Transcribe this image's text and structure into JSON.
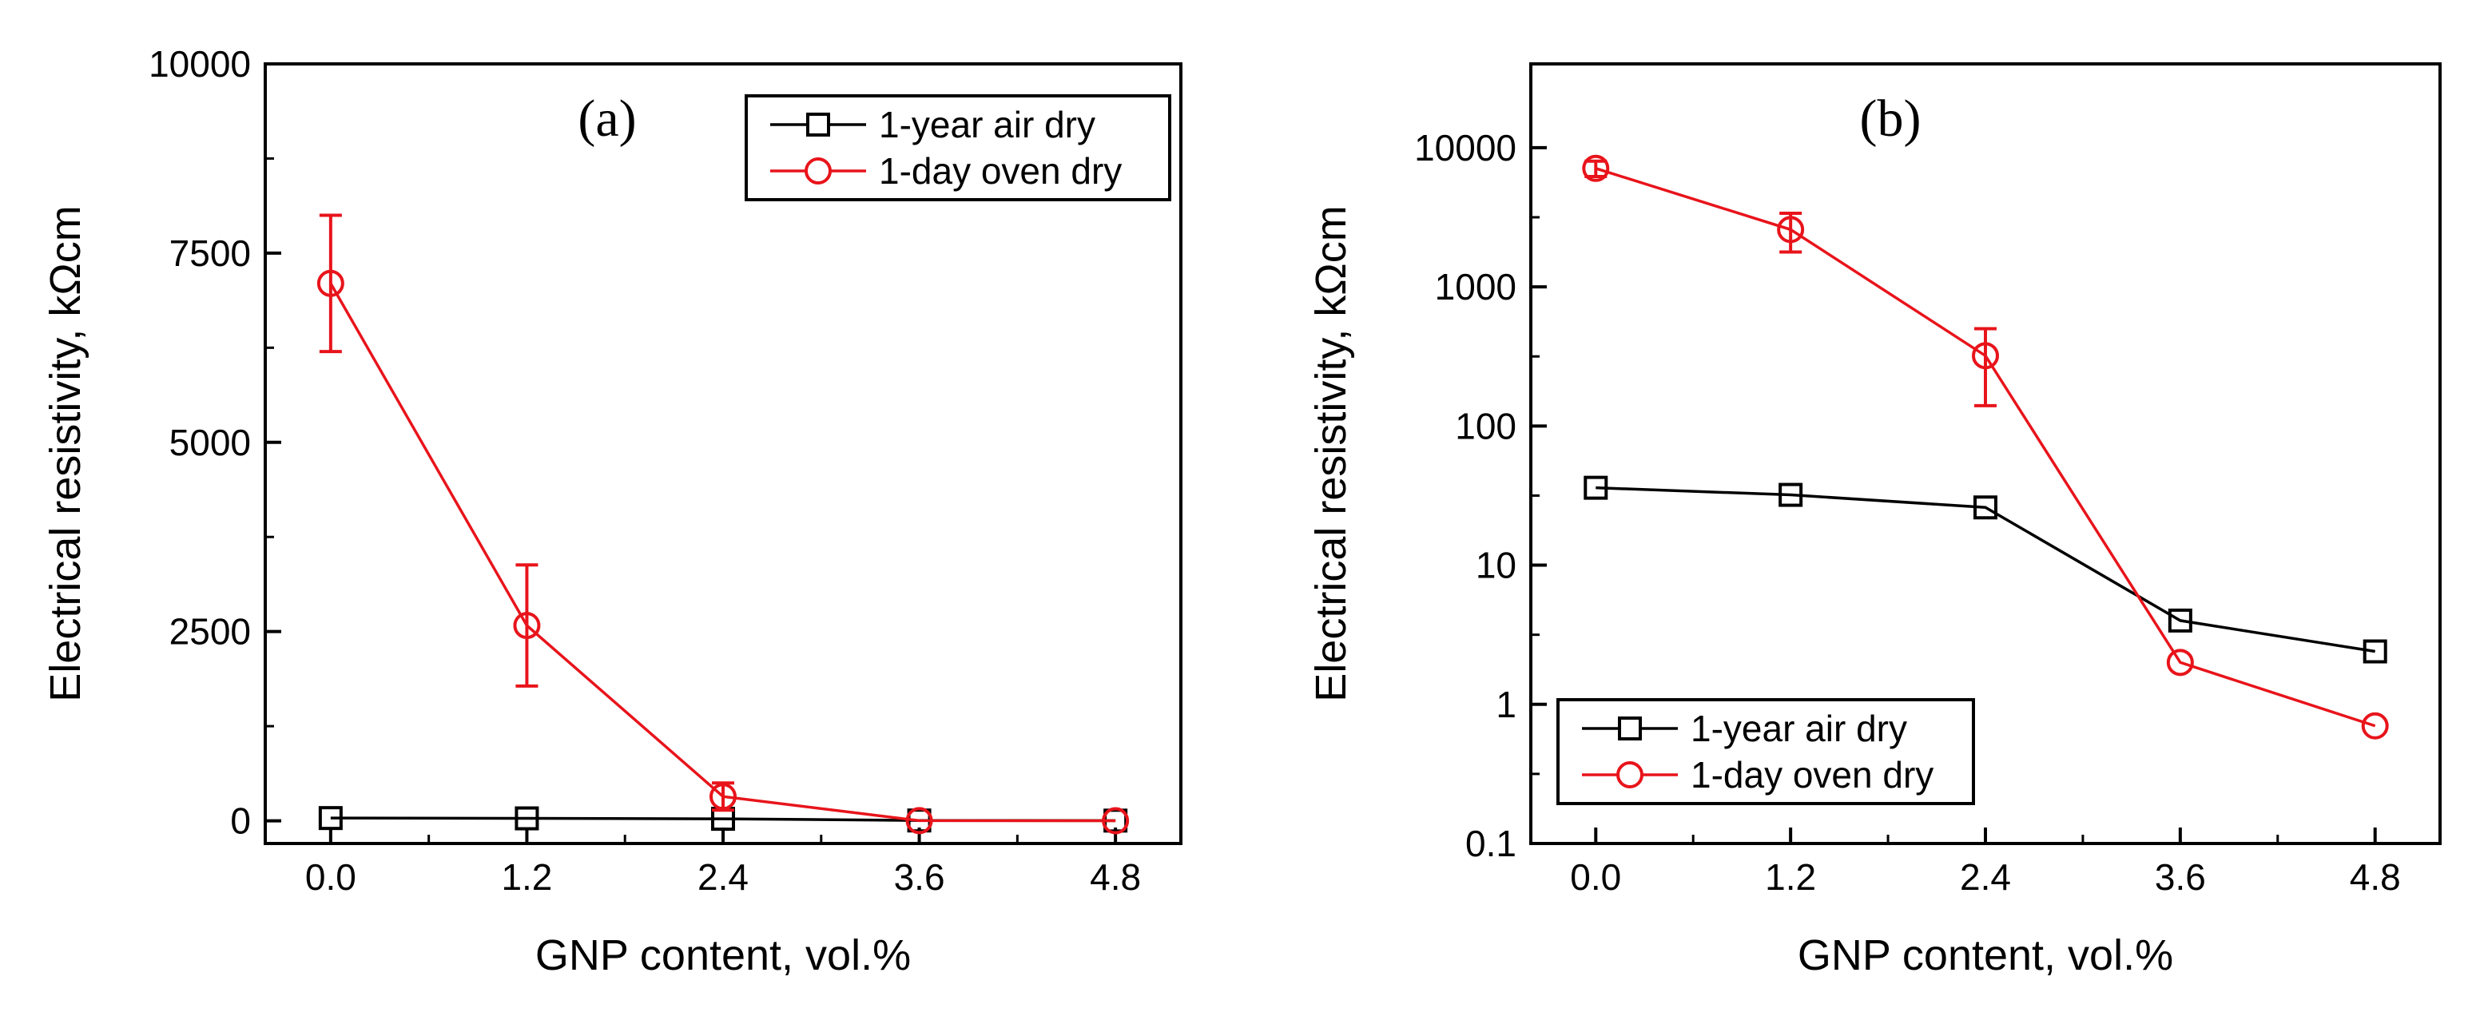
{
  "chart_data": [
    {
      "id": "a",
      "type": "line",
      "panel_label": "(a)",
      "xlabel": "GNP content, vol.%",
      "ylabel": "Electrical resistivity, kΩcm",
      "yscale": "linear",
      "xlim": [
        -0.4,
        5.2
      ],
      "ylim": [
        -300,
        10000
      ],
      "xticks": [
        0.0,
        1.2,
        2.4,
        3.6,
        4.8
      ],
      "xtick_labels": [
        "0.0",
        "1.2",
        "2.4",
        "3.6",
        "4.8"
      ],
      "yticks": [
        0,
        2500,
        5000,
        7500,
        10000
      ],
      "ytick_labels": [
        "0",
        "2500",
        "5000",
        "7500",
        "10000"
      ],
      "legend_position": "top-right",
      "series": [
        {
          "name": "1-year air dry",
          "color": "#000000",
          "marker": "square",
          "x": [
            0.0,
            1.2,
            2.4,
            3.6,
            4.8
          ],
          "y": [
            36,
            32,
            26,
            4,
            2.4
          ],
          "err": [
            0,
            0,
            0,
            0,
            0
          ]
        },
        {
          "name": "1-day oven dry",
          "color": "#e8141b",
          "marker": "circle",
          "x": [
            0.0,
            1.2,
            2.4,
            3.6,
            4.8
          ],
          "y": [
            7100,
            2580,
            320,
            2,
            0.7
          ],
          "err": [
            900,
            800,
            180,
            0,
            0
          ]
        }
      ]
    },
    {
      "id": "b",
      "type": "line",
      "panel_label": "(b)",
      "xlabel": "GNP content, vol.%",
      "ylabel": "Electrical resistivity, kΩcm",
      "yscale": "log",
      "xlim": [
        -0.4,
        5.2
      ],
      "ylim": [
        0.1,
        40000
      ],
      "xticks": [
        0.0,
        1.2,
        2.4,
        3.6,
        4.8
      ],
      "xtick_labels": [
        "0.0",
        "1.2",
        "2.4",
        "3.6",
        "4.8"
      ],
      "yticks": [
        0.1,
        1,
        10,
        100,
        1000,
        10000
      ],
      "ytick_labels": [
        "0.1",
        "1",
        "10",
        "100",
        "1000",
        "10000"
      ],
      "legend_position": "bottom-left",
      "series": [
        {
          "name": "1-year air dry",
          "color": "#000000",
          "marker": "square",
          "x": [
            0.0,
            1.2,
            2.4,
            3.6,
            4.8
          ],
          "y": [
            36,
            32,
            26,
            4,
            2.4
          ],
          "err": [
            0,
            0,
            0,
            0,
            0
          ]
        },
        {
          "name": "1-day oven dry",
          "color": "#e8141b",
          "marker": "circle",
          "x": [
            0.0,
            1.2,
            2.4,
            3.6,
            4.8
          ],
          "y": [
            7100,
            2580,
            320,
            2,
            0.7
          ],
          "err": [
            900,
            800,
            180,
            0,
            0
          ]
        }
      ]
    }
  ]
}
